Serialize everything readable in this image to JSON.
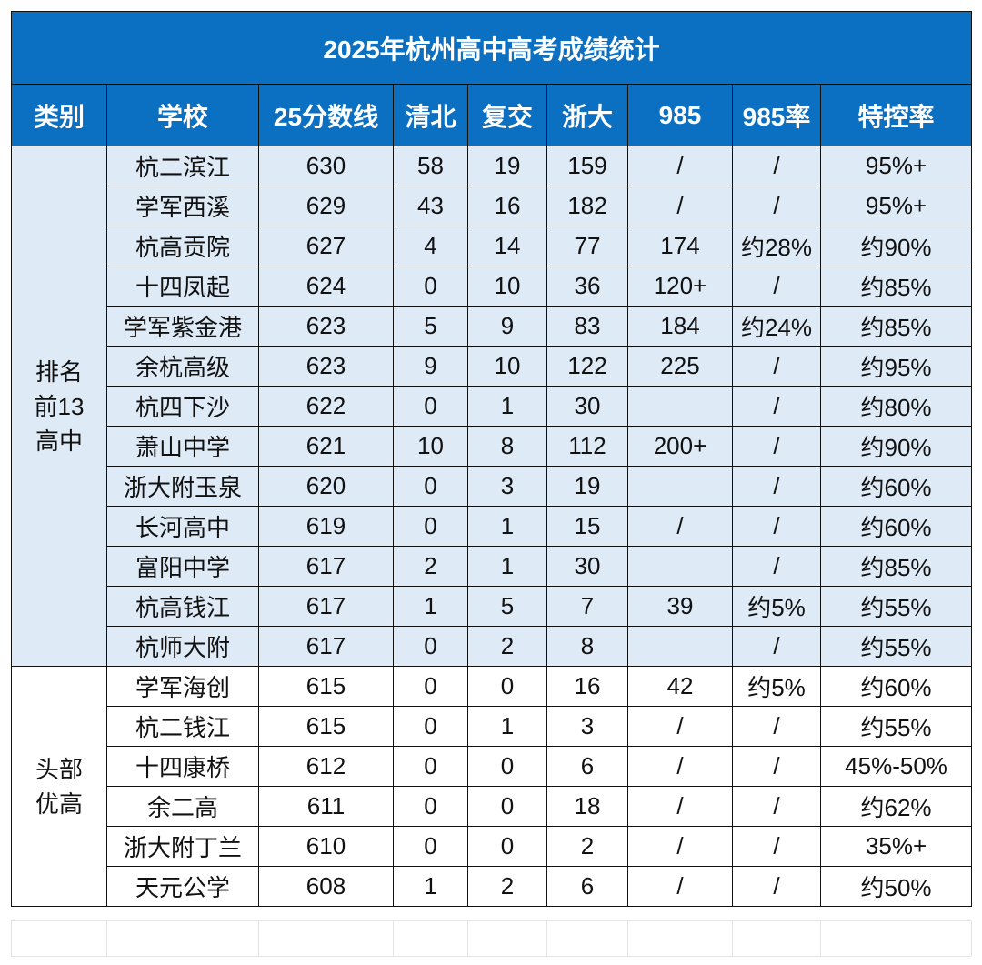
{
  "title": "2025年杭州高中高考成绩统计",
  "header": [
    "类别",
    "学校",
    "25分数线",
    "清北",
    "复交",
    "浙大",
    "985",
    "985率",
    "特控率"
  ],
  "groups": [
    {
      "label": [
        "排名",
        "前13",
        "高中"
      ],
      "rows": [
        [
          "杭二滨江",
          630,
          58,
          19,
          159,
          "/",
          "/",
          "95%+"
        ],
        [
          "学军西溪",
          629,
          43,
          16,
          182,
          "/",
          "/",
          "95%+"
        ],
        [
          "杭高贡院",
          627,
          4,
          14,
          77,
          174,
          "约28%",
          "约90%"
        ],
        [
          "十四凤起",
          624,
          0,
          10,
          36,
          "120+",
          "/",
          "约85%"
        ],
        [
          "学军紫金港",
          623,
          5,
          9,
          83,
          184,
          "约24%",
          "约85%"
        ],
        [
          "余杭高级",
          623,
          9,
          10,
          122,
          225,
          "/",
          "约95%"
        ],
        [
          "杭四下沙",
          622,
          0,
          1,
          30,
          null,
          "/",
          "约80%"
        ],
        [
          "萧山中学",
          621,
          10,
          8,
          112,
          "200+",
          "/",
          "约90%"
        ],
        [
          "浙大附玉泉",
          620,
          0,
          3,
          19,
          null,
          "/",
          "约60%"
        ],
        [
          "长河高中",
          619,
          0,
          1,
          15,
          "/",
          "/",
          "约60%"
        ],
        [
          "富阳中学",
          617,
          2,
          1,
          30,
          null,
          "/",
          "约85%"
        ],
        [
          "杭高钱江",
          617,
          1,
          5,
          7,
          39,
          "约5%",
          "约55%"
        ],
        [
          "杭师大附",
          617,
          0,
          2,
          8,
          null,
          "/",
          "约55%"
        ]
      ]
    },
    {
      "label": [
        "头部",
        "优高"
      ],
      "rows": [
        [
          "学军海创",
          615,
          0,
          0,
          16,
          42,
          "约5%",
          "约60%"
        ],
        [
          "杭二钱江",
          615,
          0,
          1,
          3,
          "/",
          "/",
          "约55%"
        ],
        [
          "十四康桥",
          612,
          0,
          0,
          6,
          "/",
          "/",
          "45%-50%"
        ],
        [
          "余二高",
          611,
          0,
          0,
          18,
          "/",
          "/",
          "约62%"
        ],
        [
          "浙大附丁兰",
          610,
          0,
          0,
          2,
          "/",
          "/",
          "35%+"
        ],
        [
          "天元公学",
          608,
          1,
          2,
          6,
          "/",
          "/",
          "约50%"
        ]
      ]
    }
  ]
}
